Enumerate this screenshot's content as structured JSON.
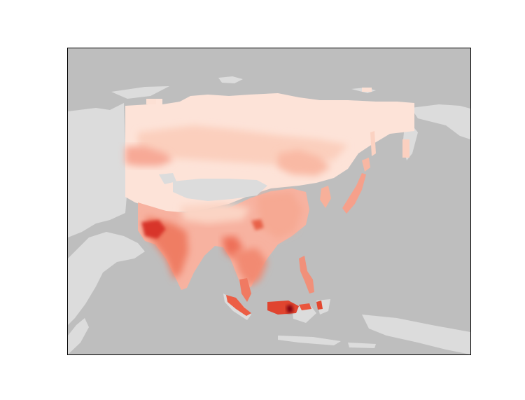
{
  "colors": {
    "figure_background": "#ffffff",
    "ocean": "#bebebe",
    "land_no_data": "#dcdcdc",
    "frame": "#000000",
    "scale_low": "#fff2ec",
    "scale_mid": "#f4826a",
    "scale_high": "#ca1f1c",
    "scale_max": "#67000d"
  },
  "map": {
    "region": "Asia",
    "projection": "geographic",
    "plot_type": "gridded heatmap overlay on land mask",
    "axes_visible": false,
    "legend_visible": false,
    "title": ""
  }
}
